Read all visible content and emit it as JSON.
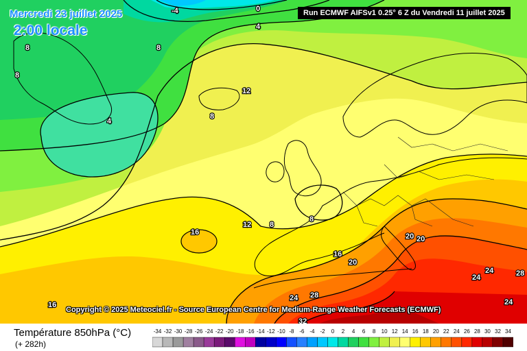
{
  "header": {
    "date_line": "Mercredi 23 juillet 2025",
    "time_line": "2:00 locale",
    "run_info": "Run ECMWF AIFSv1 0.25° 6 Z du Vendredi 11 juillet 2025"
  },
  "copyright": "Copyright © 2025 Meteociel.fr - Source European Centre for Medium-Range Weather Forecasts (ECMWF)",
  "footer": {
    "parameter": "Température 850hPa (°C)",
    "lead_time": "(+ 282h)"
  },
  "legend": {
    "values": [
      "-34",
      "-32",
      "-30",
      "-28",
      "-26",
      "-24",
      "-22",
      "-20",
      "-18",
      "-16",
      "-14",
      "-12",
      "-10",
      "-8",
      "-6",
      "-4",
      "-2",
      "0",
      "2",
      "4",
      "6",
      "8",
      "10",
      "12",
      "14",
      "16",
      "18",
      "20",
      "22",
      "24",
      "26",
      "28",
      "30",
      "32",
      "34"
    ],
    "colors": [
      "#d8d8d8",
      "#b8b8b8",
      "#9a9a9a",
      "#a080a0",
      "#8a5a8a",
      "#9a3a9a",
      "#7a1a7a",
      "#5a0a6a",
      "#e010e0",
      "#c000c0",
      "#0000a0",
      "#0000c8",
      "#0000ff",
      "#1450ff",
      "#2880ff",
      "#00a0ff",
      "#00c8ff",
      "#00e8e8",
      "#00d8a0",
      "#20d060",
      "#40e040",
      "#80f040",
      "#c0f040",
      "#f0f050",
      "#ffff70",
      "#fff000",
      "#ffc800",
      "#ffa000",
      "#ff7800",
      "#ff5000",
      "#ff2800",
      "#e00000",
      "#b80000",
      "#800000",
      "#500000"
    ]
  },
  "contour_labels": [
    {
      "text": "-4",
      "name": "contour-label-minus4"
    },
    {
      "text": "0",
      "name": "contour-label-0-north"
    },
    {
      "text": "4",
      "name": "contour-label-4-north"
    },
    {
      "text": "8",
      "name": "contour-label-8-greenland-west"
    },
    {
      "text": "8",
      "name": "contour-label-8-greenland-east"
    },
    {
      "text": "8",
      "name": "contour-label-8-west"
    },
    {
      "text": "4",
      "name": "contour-label-4-atlantic"
    },
    {
      "text": "12",
      "name": "contour-label-12-north"
    },
    {
      "text": "8",
      "name": "contour-label-8-iceland"
    },
    {
      "text": "16",
      "name": "contour-label-16-atlantic"
    },
    {
      "text": "12",
      "name": "contour-label-12-atlantic"
    },
    {
      "text": "8",
      "name": "contour-label-8-biscay"
    },
    {
      "text": "8",
      "name": "contour-label-8-france"
    },
    {
      "text": "16",
      "name": "contour-label-16-iberia"
    },
    {
      "text": "20",
      "name": "contour-label-20-med-west"
    },
    {
      "text": "20",
      "name": "contour-label-20-alps-1"
    },
    {
      "text": "20",
      "name": "contour-label-20-alps-2"
    },
    {
      "text": "16",
      "name": "contour-label-16-southwest"
    },
    {
      "text": "24",
      "name": "contour-label-24-africa"
    },
    {
      "text": "28",
      "name": "contour-label-28-africa"
    },
    {
      "text": "32",
      "name": "contour-label-32-africa"
    },
    {
      "text": "24",
      "name": "contour-label-24-greece"
    },
    {
      "text": "24",
      "name": "contour-label-24-turkey"
    },
    {
      "text": "28",
      "name": "contour-label-28-turkey"
    },
    {
      "text": "24",
      "name": "contour-label-24-levant"
    }
  ]
}
